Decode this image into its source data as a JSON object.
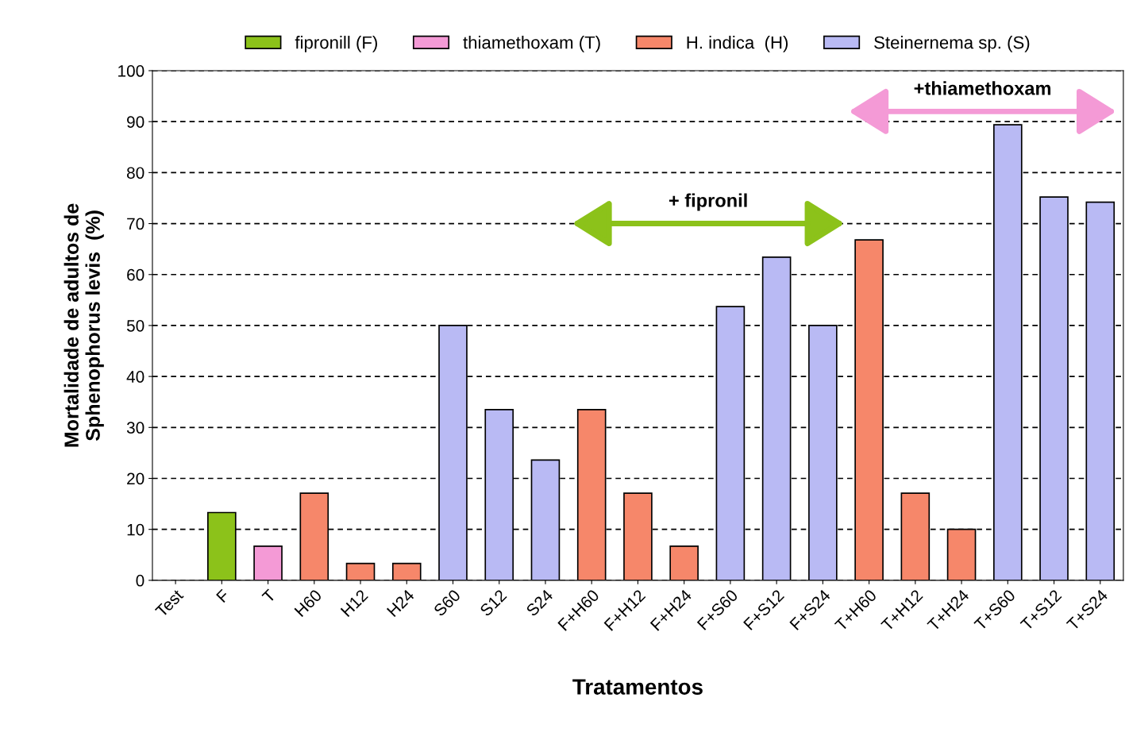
{
  "chart_data": {
    "type": "bar",
    "xlabel": "Tratamentos",
    "ylabel": "Mortalidade de adultos de\nSphenophorus levis  (%)",
    "categories": [
      "Test",
      "F",
      "T",
      "H60",
      "H12",
      "H24",
      "S60",
      "S12",
      "S24",
      "F+H60",
      "F+H12",
      "F+H24",
      "F+S60",
      "F+S12",
      "F+S24",
      "T+H60",
      "T+H12",
      "T+H24",
      "T+S60",
      "T+S12",
      "T+S24"
    ],
    "series": [
      {
        "name": "fipronill (F)",
        "color": "#8cc21a",
        "values": [
          null,
          13.3,
          null,
          null,
          null,
          null,
          null,
          null,
          null,
          null,
          null,
          null,
          null,
          null,
          null,
          null,
          null,
          null,
          null,
          null,
          null
        ]
      },
      {
        "name": "thiamethoxam (T)",
        "color": "#f49ad6",
        "values": [
          null,
          null,
          6.7,
          null,
          null,
          null,
          null,
          null,
          null,
          null,
          null,
          null,
          null,
          null,
          null,
          null,
          null,
          null,
          null,
          null,
          null
        ]
      },
      {
        "name": "H. indica  (H)",
        "color": "#f6876a",
        "values": [
          null,
          null,
          null,
          17.1,
          3.3,
          3.3,
          null,
          null,
          null,
          33.5,
          17.1,
          6.7,
          null,
          null,
          null,
          66.8,
          17.1,
          10,
          null,
          null,
          null
        ]
      },
      {
        "name": "Steinernema sp. (S)",
        "color": "#b9baf4",
        "values": [
          null,
          null,
          null,
          null,
          null,
          null,
          50,
          33.5,
          23.6,
          null,
          null,
          null,
          53.7,
          63.4,
          50,
          null,
          null,
          null,
          89.4,
          75.2,
          74.2
        ]
      }
    ],
    "ylim": [
      0,
      100
    ],
    "yticks": [
      0,
      10,
      20,
      30,
      40,
      50,
      60,
      70,
      80,
      90,
      100
    ],
    "grid": "y",
    "legend": "top",
    "annotations": [
      "+ fipronil",
      "+thiamethoxam"
    ]
  }
}
